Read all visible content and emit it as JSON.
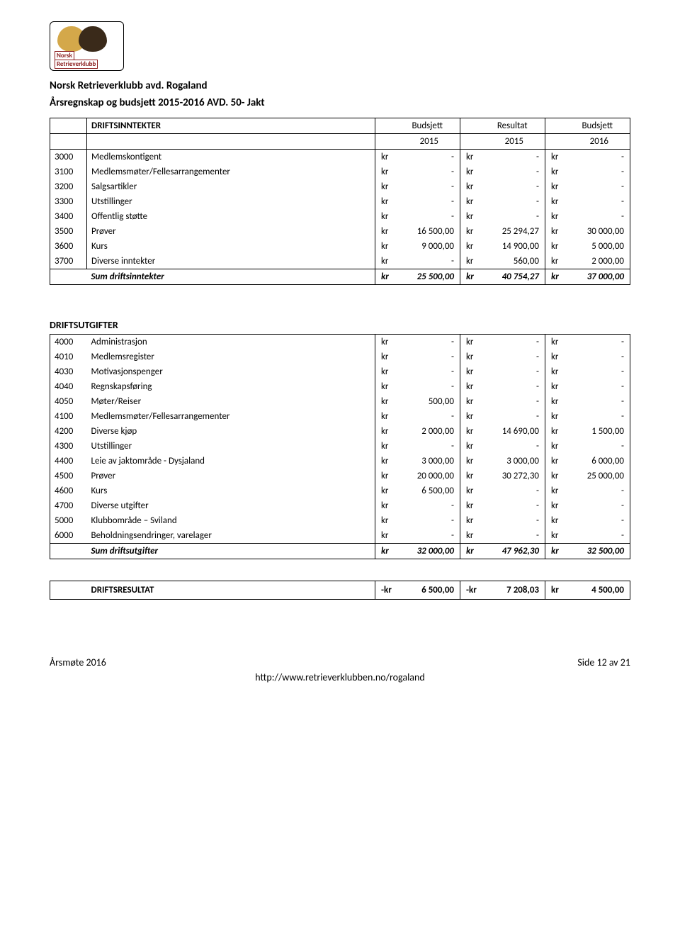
{
  "logo": {
    "line1": "Norsk",
    "line2": "Retrieverklubb"
  },
  "org": "Norsk Retrieverklubb avd. Rogaland",
  "title": "Årsregnskap og budsjett 2015-2016 AVD. 50- Jakt",
  "income": {
    "section_label": "DRIFTSINNTEKTER",
    "col_headers": [
      "Budsjett",
      "Resultat",
      "Budsjett"
    ],
    "years": [
      "2015",
      "2015",
      "2016"
    ],
    "rows": [
      {
        "code": "3000",
        "label": "Medlemskontigent",
        "c1": "kr",
        "v1": "-",
        "c2": "kr",
        "v2": "-",
        "c3": "kr",
        "v3": "-"
      },
      {
        "code": "3100",
        "label": "Medlemsmøter/Fellesarrangementer",
        "c1": "kr",
        "v1": "-",
        "c2": "kr",
        "v2": "-",
        "c3": "kr",
        "v3": "-"
      },
      {
        "code": "3200",
        "label": "Salgsartikler",
        "c1": "kr",
        "v1": "-",
        "c2": "kr",
        "v2": "-",
        "c3": "kr",
        "v3": "-"
      },
      {
        "code": "3300",
        "label": "Utstillinger",
        "c1": "kr",
        "v1": "-",
        "c2": "kr",
        "v2": "-",
        "c3": "kr",
        "v3": "-"
      },
      {
        "code": "3400",
        "label": "Offentlig støtte",
        "c1": "kr",
        "v1": "-",
        "c2": "kr",
        "v2": "-",
        "c3": "kr",
        "v3": "-"
      },
      {
        "code": "3500",
        "label": "Prøver",
        "c1": "kr",
        "v1": "16 500,00",
        "c2": "kr",
        "v2": "25 294,27",
        "c3": "kr",
        "v3": "30 000,00"
      },
      {
        "code": "3600",
        "label": "Kurs",
        "c1": "kr",
        "v1": "9 000,00",
        "c2": "kr",
        "v2": "14 900,00",
        "c3": "kr",
        "v3": "5 000,00"
      },
      {
        "code": "3700",
        "label": "Diverse inntekter",
        "c1": "kr",
        "v1": "-",
        "c2": "kr",
        "v2": "560,00",
        "c3": "kr",
        "v3": "2 000,00"
      }
    ],
    "sum": {
      "label": "Sum driftsinntekter",
      "c1": "kr",
      "v1": "25 500,00",
      "c2": "kr",
      "v2": "40 754,27",
      "c3": "kr",
      "v3": "37 000,00"
    }
  },
  "expenses": {
    "section_label": "DRIFTSUTGIFTER",
    "rows": [
      {
        "code": "4000",
        "label": "Administrasjon",
        "c1": "kr",
        "v1": "-",
        "c2": "kr",
        "v2": "-",
        "c3": "kr",
        "v3": "-"
      },
      {
        "code": "4010",
        "label": "Medlemsregister",
        "c1": "kr",
        "v1": "-",
        "c2": "kr",
        "v2": "-",
        "c3": "kr",
        "v3": "-"
      },
      {
        "code": "4030",
        "label": "Motivasjonspenger",
        "c1": "kr",
        "v1": "-",
        "c2": "kr",
        "v2": "-",
        "c3": "kr",
        "v3": "-"
      },
      {
        "code": "4040",
        "label": "Regnskapsføring",
        "c1": "kr",
        "v1": "-",
        "c2": "kr",
        "v2": "-",
        "c3": "kr",
        "v3": "-"
      },
      {
        "code": "4050",
        "label": "Møter/Reiser",
        "c1": "kr",
        "v1": "500,00",
        "c2": "kr",
        "v2": "-",
        "c3": "kr",
        "v3": "-"
      },
      {
        "code": "4100",
        "label": "Medlemsmøter/Fellesarrangementer",
        "c1": "kr",
        "v1": "-",
        "c2": "kr",
        "v2": "-",
        "c3": "kr",
        "v3": "-"
      },
      {
        "code": "4200",
        "label": "Diverse kjøp",
        "c1": "kr",
        "v1": "2 000,00",
        "c2": "kr",
        "v2": "14 690,00",
        "c3": "kr",
        "v3": "1 500,00"
      },
      {
        "code": "4300",
        "label": "Utstillinger",
        "c1": "kr",
        "v1": "-",
        "c2": "kr",
        "v2": "-",
        "c3": "kr",
        "v3": "-"
      },
      {
        "code": "4400",
        "label": "Leie av jaktområde - Dysjaland",
        "c1": "kr",
        "v1": "3 000,00",
        "c2": "kr",
        "v2": "3 000,00",
        "c3": "kr",
        "v3": "6 000,00"
      },
      {
        "code": "4500",
        "label": "Prøver",
        "c1": "kr",
        "v1": "20 000,00",
        "c2": "kr",
        "v2": "30 272,30",
        "c3": "kr",
        "v3": "25 000,00"
      },
      {
        "code": "4600",
        "label": "Kurs",
        "c1": "kr",
        "v1": "6 500,00",
        "c2": "kr",
        "v2": "-",
        "c3": "kr",
        "v3": "-"
      },
      {
        "code": "4700",
        "label": "Diverse utgifter",
        "c1": "kr",
        "v1": "-",
        "c2": "kr",
        "v2": "-",
        "c3": "kr",
        "v3": "-"
      },
      {
        "code": "5000",
        "label": "Klubbområde – Sviland",
        "c1": "kr",
        "v1": "-",
        "c2": "kr",
        "v2": "-",
        "c3": "kr",
        "v3": "-"
      },
      {
        "code": "6000",
        "label": "Beholdningsendringer, varelager",
        "c1": "kr",
        "v1": "-",
        "c2": "kr",
        "v2": "-",
        "c3": "kr",
        "v3": "-"
      }
    ],
    "sum": {
      "label": "Sum driftsutgifter",
      "c1": "kr",
      "v1": "32 000,00",
      "c2": "kr",
      "v2": "47 962,30",
      "c3": "kr",
      "v3": "32 500,00"
    }
  },
  "result": {
    "label": "DRIFTSRESULTAT",
    "c1": "-kr",
    "v1": "6 500,00",
    "c2": "-kr",
    "v2": "7 208,03",
    "c3": "kr",
    "v3": "4 500,00"
  },
  "footer": {
    "left": "Årsmøte 2016",
    "right": "Side 12 av 21",
    "url": "http://www.retrieverklubben.no/rogaland"
  }
}
